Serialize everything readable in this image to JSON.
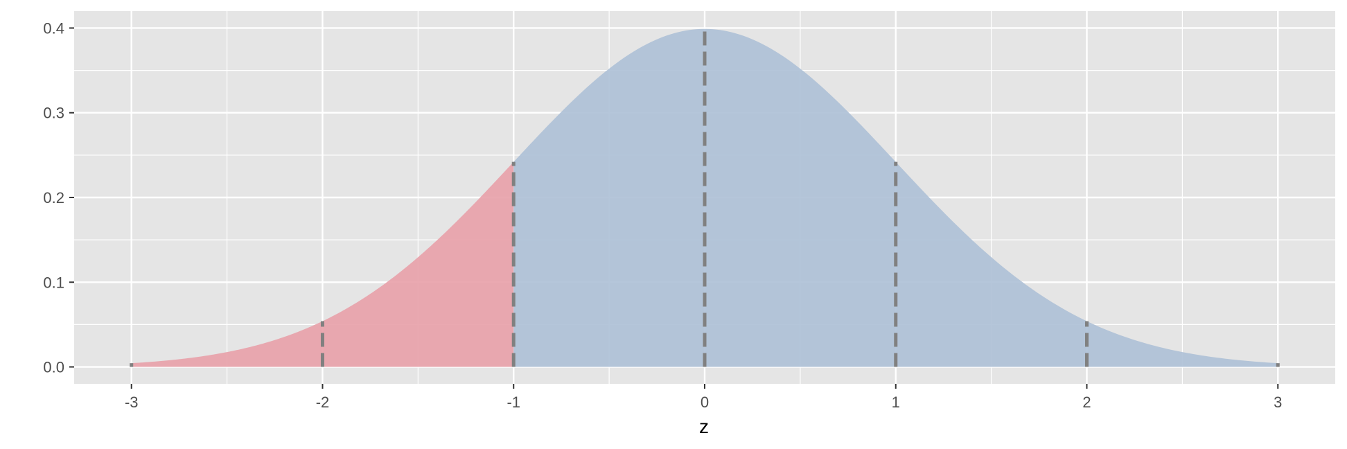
{
  "chart_data": {
    "type": "area",
    "title": "",
    "xlabel": "z",
    "ylabel": "",
    "xlim": [
      -3.3,
      3.3
    ],
    "ylim": [
      -0.02,
      0.42
    ],
    "x_ticks": [
      -3,
      -2,
      -1,
      0,
      1,
      2,
      3
    ],
    "x_tick_labels": [
      "-3",
      "-2",
      "-1",
      "0",
      "1",
      "2",
      "3"
    ],
    "y_ticks": [
      0.0,
      0.1,
      0.2,
      0.3,
      0.4
    ],
    "y_tick_labels": [
      "0.0",
      "0.1",
      "0.2",
      "0.3",
      "0.4"
    ],
    "grid": true,
    "curve": "standard normal density",
    "x_range": [
      -3,
      3
    ],
    "shaded_regions": [
      {
        "from": -3,
        "to": -1,
        "color": "#e8a0a8"
      },
      {
        "from": -1,
        "to": 3,
        "color": "#adc0d6"
      }
    ],
    "reference_lines": [
      {
        "x": -3,
        "y": 0.0044
      },
      {
        "x": -2,
        "y": 0.054
      },
      {
        "x": -1,
        "y": 0.242
      },
      {
        "x": 0,
        "y": 0.399
      },
      {
        "x": 1,
        "y": 0.242
      },
      {
        "x": 2,
        "y": 0.054
      },
      {
        "x": 3,
        "y": 0.0044
      }
    ],
    "reference_line_style": "dashed",
    "colors": {
      "panel": "#e5e5e5",
      "grid": "#ffffff",
      "reference_line": "#808080"
    }
  }
}
